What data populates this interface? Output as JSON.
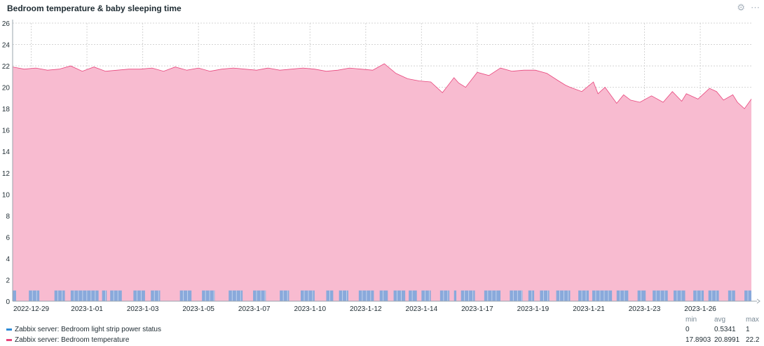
{
  "title": "Bedroom temperature & baby sleeping time",
  "icons": [
    "gear-icon",
    "more-icon"
  ],
  "colors": {
    "temperature": "#e8457c",
    "temperature_fill": "#f8bbd0",
    "power": "#2e8bd6",
    "power_fill": "#89a9db"
  },
  "chart_data": {
    "type": "area",
    "ylim": [
      0,
      26
    ],
    "yticks": [
      0,
      2,
      4,
      6,
      8,
      10,
      12,
      14,
      16,
      18,
      20,
      22,
      24,
      26
    ],
    "grid": true,
    "x_start": "2022-12-28",
    "x_end": "2023-1-29",
    "x_tick_labels": [
      "2022-12-29",
      "2023-1-01",
      "2023-1-03",
      "2023-1-05",
      "2023-1-07",
      "2023-1-10",
      "2023-1-12",
      "2023-1-14",
      "2023-1-17",
      "2023-1-19",
      "2023-1-21",
      "2023-1-23",
      "2023-1-26"
    ],
    "x_tick_days": [
      0.8,
      3.2,
      5.6,
      8.0,
      10.4,
      12.8,
      15.2,
      17.6,
      20.0,
      22.4,
      24.8,
      27.2,
      29.6
    ],
    "series": [
      {
        "name": "Zabbix server: Bedroom temperature",
        "days": [
          0,
          0.5,
          1,
          1.5,
          2,
          2.5,
          3,
          3.5,
          4,
          4.5,
          5,
          5.5,
          6,
          6.5,
          7,
          7.5,
          8,
          8.5,
          9,
          9.5,
          10,
          10.5,
          11,
          11.5,
          12,
          12.5,
          13,
          13.5,
          14,
          14.5,
          15,
          15.5,
          16,
          16.5,
          17,
          17.5,
          18,
          18.5,
          19,
          19.2,
          19.5,
          20,
          20.5,
          21,
          21.5,
          22,
          22.5,
          23,
          23.5,
          23.8,
          24,
          24.5,
          25,
          25.2,
          25.5,
          26,
          26.3,
          26.6,
          27,
          27.5,
          28,
          28.4,
          28.8,
          29,
          29.5,
          30,
          30.3,
          30.6,
          31,
          31.2,
          31.5,
          31.8
        ],
        "values": [
          21.9,
          21.7,
          21.8,
          21.6,
          21.7,
          22.0,
          21.5,
          21.9,
          21.5,
          21.6,
          21.7,
          21.7,
          21.8,
          21.5,
          21.9,
          21.6,
          21.8,
          21.5,
          21.7,
          21.8,
          21.7,
          21.6,
          21.8,
          21.6,
          21.7,
          21.8,
          21.7,
          21.5,
          21.6,
          21.8,
          21.7,
          21.6,
          22.2,
          21.3,
          20.8,
          20.6,
          20.5,
          19.5,
          20.9,
          20.4,
          20.0,
          21.4,
          21.1,
          21.8,
          21.5,
          21.6,
          21.6,
          21.3,
          20.6,
          20.2,
          20.0,
          19.6,
          20.5,
          19.4,
          20.0,
          18.5,
          19.3,
          18.8,
          18.6,
          19.2,
          18.6,
          19.6,
          18.7,
          19.4,
          18.9,
          19.9,
          19.6,
          18.8,
          19.3,
          18.6,
          18.0,
          18.9
        ],
        "min": "17.8903",
        "avg": "20.8991",
        "max": "22.2"
      },
      {
        "name": "Zabbix server: Bedroom light strip power status",
        "on_intervals": [
          [
            0,
            0.15
          ],
          [
            0.7,
            1.15
          ],
          [
            1.8,
            2.25
          ],
          [
            2.5,
            3.7
          ],
          [
            3.85,
            4.05
          ],
          [
            4.2,
            4.7
          ],
          [
            5.2,
            5.7
          ],
          [
            5.95,
            6.35
          ],
          [
            7.2,
            7.7
          ],
          [
            8.15,
            8.7
          ],
          [
            9.3,
            9.9
          ],
          [
            10.35,
            10.9
          ],
          [
            11.5,
            11.9
          ],
          [
            12.4,
            13.0
          ],
          [
            13.5,
            13.8
          ],
          [
            14.05,
            14.45
          ],
          [
            14.9,
            15.55
          ],
          [
            15.8,
            16.15
          ],
          [
            16.4,
            16.9
          ],
          [
            17.05,
            17.4
          ],
          [
            17.6,
            18.0
          ],
          [
            18.4,
            18.8
          ],
          [
            19.0,
            19.1
          ],
          [
            19.3,
            19.9
          ],
          [
            20.3,
            21.0
          ],
          [
            21.4,
            21.95
          ],
          [
            22.2,
            22.45
          ],
          [
            22.7,
            23.1
          ],
          [
            23.4,
            24.0
          ],
          [
            24.35,
            24.8
          ],
          [
            24.95,
            25.8
          ],
          [
            26.0,
            26.5
          ],
          [
            26.9,
            27.25
          ],
          [
            27.55,
            28.2
          ],
          [
            28.45,
            28.95
          ],
          [
            29.3,
            29.75
          ],
          [
            29.95,
            30.4
          ],
          [
            30.8,
            31.1
          ],
          [
            31.5,
            31.8
          ]
        ],
        "min": "0",
        "avg": "0.5341",
        "max": "1"
      }
    ]
  },
  "legend": {
    "headers": {
      "min": "min",
      "avg": "avg",
      "max": "max"
    },
    "items": [
      {
        "label": "Zabbix server: Bedroom light strip power status",
        "min": "0",
        "avg": "0.5341",
        "max": "1"
      },
      {
        "label": "Zabbix server: Bedroom temperature",
        "min": "17.8903",
        "avg": "20.8991",
        "max": "22.2"
      }
    ]
  }
}
